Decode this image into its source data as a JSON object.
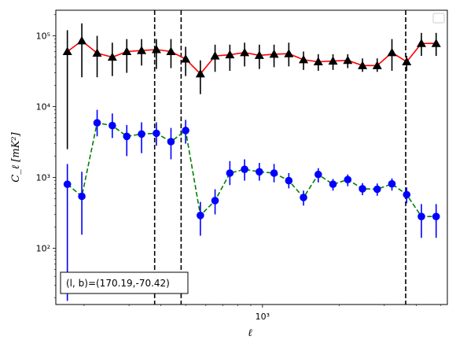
{
  "chart_data": {
    "type": "scatter",
    "title": "",
    "xlabel": "ℓ",
    "ylabel": "C_ℓ [mK²]",
    "xscale": "log",
    "yscale": "log",
    "xlim": [
      155,
      5300
    ],
    "ylim": [
      16,
      230000
    ],
    "grid": false,
    "legend": "upper-right (empty box)",
    "x_tick_labels": [
      {
        "value": 1000,
        "label": "10³"
      }
    ],
    "y_tick_labels": [
      {
        "value": 100,
        "label": "10²"
      },
      {
        "value": 1000,
        "label": "10³"
      },
      {
        "value": 10000,
        "label": "10⁴"
      },
      {
        "value": 100000,
        "label": "10⁵"
      }
    ],
    "annotation": "(l, b)=(170.19,-70.42)",
    "vlines": [
      378,
      480,
      3640
    ],
    "series": [
      {
        "marker": "triangle",
        "color": "#000000",
        "line_color": "#ff0000",
        "line_style": "solid",
        "x": [
          172,
          196,
          225,
          258,
          294,
          336,
          384,
          438,
          500,
          571,
          652,
          745,
          851,
          972,
          1110,
          1268,
          1448,
          1654,
          1889,
          2158,
          2465,
          2815,
          3215,
          3672,
          4194,
          4790
        ],
        "y": [
          60000,
          85000,
          57000,
          50000,
          60000,
          62000,
          64000,
          60000,
          47000,
          29000,
          52000,
          54000,
          58000,
          53000,
          55000,
          56000,
          46000,
          43000,
          44000,
          45000,
          38000,
          38000,
          58000,
          43000,
          78000,
          78000
        ],
        "err_low": [
          2500,
          26000,
          26000,
          27000,
          30000,
          38000,
          34000,
          35000,
          27000,
          15000,
          31000,
          32000,
          37000,
          34000,
          36000,
          37000,
          33000,
          32000,
          33000,
          35000,
          31000,
          31000,
          32000,
          32000,
          52000,
          52000
        ],
        "err_high": [
          120000,
          150000,
          100000,
          80000,
          90000,
          90000,
          90000,
          90000,
          70000,
          45000,
          75000,
          75000,
          80000,
          75000,
          75000,
          80000,
          60000,
          55000,
          55000,
          55000,
          48000,
          48000,
          90000,
          52000,
          110000,
          110000
        ]
      },
      {
        "marker": "circle",
        "color": "#0000ff",
        "line_color": "#008000",
        "line_style": "dashed",
        "x": [
          172,
          196,
          225,
          258,
          294,
          336,
          384,
          438,
          500,
          571,
          652,
          745,
          851,
          972,
          1110,
          1268,
          1448,
          1654,
          1889,
          2158,
          2465,
          2815,
          3215,
          3672,
          4194,
          4790
        ],
        "y": [
          800,
          540,
          5900,
          5400,
          3800,
          4100,
          4200,
          3200,
          4600,
          290,
          470,
          1150,
          1300,
          1200,
          1150,
          900,
          520,
          1100,
          800,
          930,
          690,
          680,
          810,
          570,
          280,
          280
        ],
        "err_low": [
          18,
          155,
          3800,
          3600,
          2000,
          2200,
          2800,
          1800,
          3000,
          150,
          300,
          780,
          900,
          900,
          850,
          700,
          400,
          850,
          650,
          750,
          560,
          550,
          650,
          430,
          140,
          140
        ],
        "err_high": [
          1550,
          1200,
          9000,
          8000,
          5500,
          6000,
          6000,
          5000,
          6500,
          450,
          680,
          1700,
          1800,
          1600,
          1550,
          1150,
          650,
          1350,
          950,
          1100,
          830,
          820,
          970,
          720,
          420,
          420
        ]
      }
    ]
  }
}
